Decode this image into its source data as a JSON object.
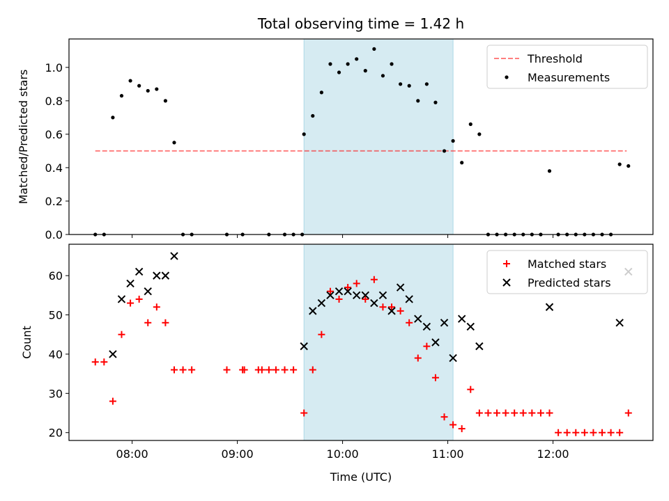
{
  "title": "Total observing time = 1.42 h",
  "colors": {
    "highlight": "#add8e6",
    "threshold": "#ff0000",
    "measurements": "#000000",
    "matched": "#ff0000",
    "predicted": "#000000"
  },
  "chart_data": [
    {
      "type": "scatter",
      "ylabel": "Matched/Predicted stars",
      "ylim": [
        0,
        1.17
      ],
      "yticks": [
        0.0,
        0.2,
        0.4,
        0.6,
        0.8,
        1.0
      ],
      "ytick_labels": [
        "0.0",
        "0.2",
        "0.4",
        "0.6",
        "0.8",
        "1.0"
      ],
      "xlim": [
        "07:24",
        "12:57"
      ],
      "highlight_span": [
        "09:38",
        "11:03"
      ],
      "legend": {
        "placement": "upper right",
        "entries": [
          "Threshold",
          "Measurements"
        ]
      },
      "series": [
        {
          "name": "Threshold",
          "style": "dashed-line",
          "x": [
            "07:39",
            "12:42"
          ],
          "y": [
            0.5,
            0.5
          ]
        },
        {
          "name": "Measurements",
          "style": "dot",
          "x": [
            "07:39",
            "07:44",
            "07:49",
            "07:54",
            "07:59",
            "08:04",
            "08:09",
            "08:14",
            "08:19",
            "08:24",
            "08:29",
            "08:34",
            "08:54",
            "09:03",
            "09:18",
            "09:27",
            "09:32",
            "09:37",
            "09:38",
            "09:43",
            "09:48",
            "09:53",
            "09:58",
            "10:03",
            "10:08",
            "10:13",
            "10:18",
            "10:23",
            "10:28",
            "10:33",
            "10:38",
            "10:43",
            "10:48",
            "10:53",
            "10:58",
            "11:03",
            "11:08",
            "11:13",
            "11:18",
            "11:23",
            "11:28",
            "11:33",
            "11:38",
            "11:43",
            "11:48",
            "11:53",
            "11:58",
            "12:03",
            "12:08",
            "12:13",
            "12:18",
            "12:23",
            "12:28",
            "12:33",
            "12:38",
            "12:43"
          ],
          "y": [
            0,
            0,
            0.7,
            0.83,
            0.92,
            0.89,
            0.86,
            0.87,
            0.8,
            0.55,
            0,
            0,
            0,
            0,
            0,
            0,
            0,
            0,
            0.6,
            0.71,
            0.85,
            1.02,
            0.97,
            1.02,
            1.05,
            0.98,
            1.11,
            0.95,
            1.02,
            0.9,
            0.89,
            0.8,
            0.9,
            0.79,
            0.5,
            0.56,
            0.43,
            0.66,
            0.6,
            0,
            0,
            0,
            0,
            0,
            0,
            0,
            0.38,
            0,
            0,
            0,
            0,
            0,
            0,
            0,
            0.42,
            0.41
          ]
        }
      ]
    },
    {
      "type": "scatter",
      "ylabel": "Count",
      "xlabel": "Time (UTC)",
      "ylim": [
        18,
        68
      ],
      "yticks": [
        20,
        30,
        40,
        50,
        60
      ],
      "ytick_labels": [
        "20",
        "30",
        "40",
        "50",
        "60"
      ],
      "xlim": [
        "07:24",
        "12:57"
      ],
      "xticks": [
        "08:00",
        "09:00",
        "10:00",
        "11:00",
        "12:00"
      ],
      "xtick_labels": [
        "08:00",
        "09:00",
        "10:00",
        "11:00",
        "12:00"
      ],
      "highlight_span": [
        "09:38",
        "11:03"
      ],
      "legend": {
        "placement": "upper right",
        "entries": [
          "Matched stars",
          "Predicted stars"
        ]
      },
      "series": [
        {
          "name": "Matched stars",
          "style": "plus",
          "x": [
            "07:39",
            "07:44",
            "07:49",
            "07:54",
            "07:59",
            "08:04",
            "08:09",
            "08:14",
            "08:19",
            "08:24",
            "08:29",
            "08:34",
            "08:54",
            "09:03",
            "09:04",
            "09:12",
            "09:14",
            "09:18",
            "09:22",
            "09:27",
            "09:32",
            "09:38",
            "09:43",
            "09:48",
            "09:53",
            "09:58",
            "10:03",
            "10:08",
            "10:13",
            "10:18",
            "10:23",
            "10:28",
            "10:33",
            "10:38",
            "10:43",
            "10:48",
            "10:53",
            "10:58",
            "11:03",
            "11:08",
            "11:13",
            "11:18",
            "11:23",
            "11:28",
            "11:33",
            "11:38",
            "11:43",
            "11:48",
            "11:53",
            "11:58",
            "12:03",
            "12:08",
            "12:13",
            "12:18",
            "12:23",
            "12:28",
            "12:33",
            "12:38",
            "12:43"
          ],
          "y": [
            38,
            38,
            28,
            45,
            53,
            54,
            48,
            52,
            48,
            36,
            36,
            36,
            36,
            36,
            36,
            36,
            36,
            36,
            36,
            36,
            36,
            25,
            36,
            45,
            56,
            54,
            57,
            58,
            54,
            59,
            52,
            52,
            51,
            48,
            39,
            42,
            34,
            24,
            22,
            21,
            31,
            25,
            25,
            25,
            25,
            25,
            25,
            25,
            25,
            25,
            20,
            20,
            20,
            20,
            20,
            20,
            20,
            20,
            25
          ]
        },
        {
          "name": "Predicted stars",
          "style": "x",
          "x": [
            "07:49",
            "07:54",
            "07:59",
            "08:04",
            "08:09",
            "08:14",
            "08:19",
            "08:24",
            "09:38",
            "09:43",
            "09:48",
            "09:53",
            "09:58",
            "10:03",
            "10:08",
            "10:13",
            "10:18",
            "10:23",
            "10:28",
            "10:33",
            "10:38",
            "10:43",
            "10:48",
            "10:53",
            "10:58",
            "11:03",
            "11:08",
            "11:13",
            "11:18",
            "11:58",
            "12:38",
            "12:43"
          ],
          "y": [
            40,
            54,
            58,
            61,
            56,
            60,
            60,
            65,
            42,
            51,
            53,
            55,
            56,
            56,
            55,
            55,
            53,
            55,
            51,
            57,
            54,
            49,
            47,
            43,
            48,
            39,
            49,
            47,
            42,
            52,
            48,
            61
          ]
        }
      ]
    }
  ]
}
